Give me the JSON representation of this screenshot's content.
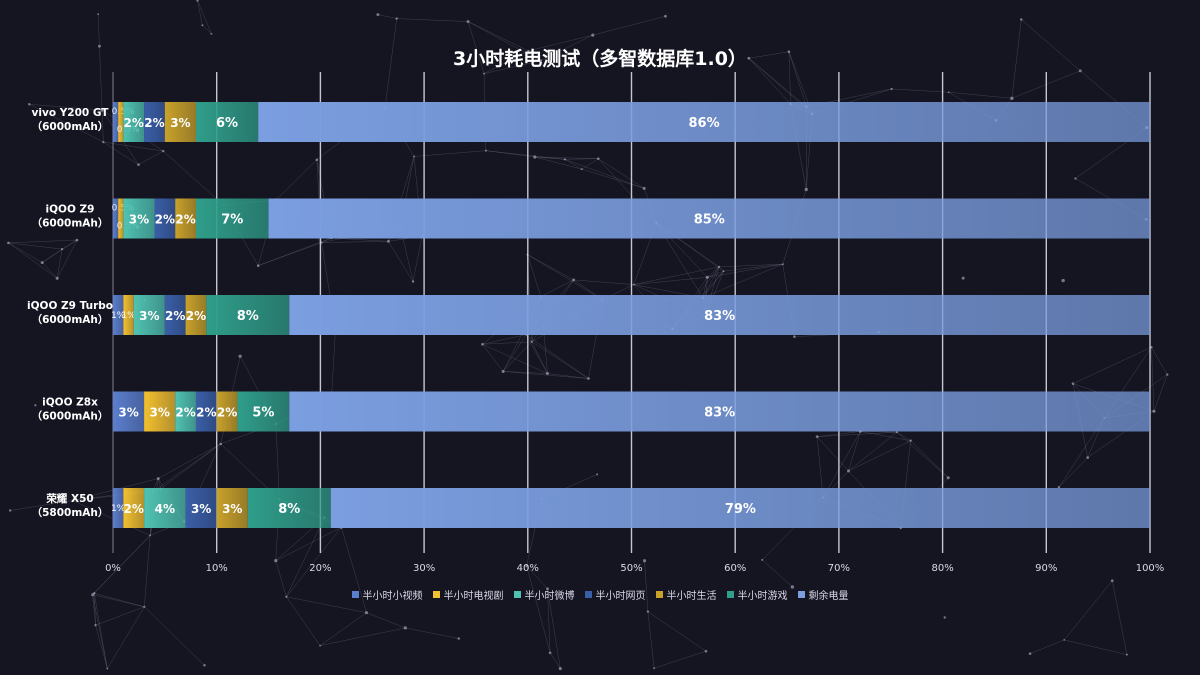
{
  "chart_data": {
    "type": "bar",
    "orientation": "horizontal-stacked-100",
    "title": "3小时耗电测试（多智数据库1.0）",
    "categories": [
      "vivo Y200 GT\n（6000mAh）",
      "iQOO Z9\n（6000mAh）",
      "iQOO Z9 Turbo\n（6000mAh）",
      "iQOO Z8x\n（6000mAh）",
      "荣耀 X50\n（5800mAh）"
    ],
    "series": [
      {
        "name": "半小时小视频",
        "color": "#5b7fcf",
        "values": [
          0.5,
          0.5,
          1,
          3,
          1
        ],
        "labels": [
          "0.5%",
          "0.5%",
          "1%",
          "3%",
          "1%"
        ]
      },
      {
        "name": "半小时电视剧",
        "color": "#f2c030",
        "values": [
          0.5,
          0.5,
          1,
          3,
          2
        ],
        "labels": [
          "0.5%",
          "0.5%",
          "1%",
          "3%",
          "2%"
        ]
      },
      {
        "name": "半小时微博",
        "color": "#4fc3b2",
        "values": [
          2,
          3,
          3,
          2,
          4
        ],
        "labels": [
          "2%",
          "3%",
          "3%",
          "2%",
          "4%"
        ]
      },
      {
        "name": "半小时网页",
        "color": "#3a5fa8",
        "values": [
          2,
          2,
          2,
          2,
          3
        ],
        "labels": [
          "2%",
          "2%",
          "2%",
          "2%",
          "3%"
        ]
      },
      {
        "name": "半小时生活",
        "color": "#c9a22a",
        "values": [
          3,
          2,
          2,
          2,
          3
        ],
        "labels": [
          "3%",
          "2%",
          "2%",
          "2%",
          "3%"
        ]
      },
      {
        "name": "半小时游戏",
        "color": "#2f9e8a",
        "values": [
          6,
          7,
          8,
          5,
          8
        ],
        "labels": [
          "6%",
          "7%",
          "8%",
          "5%",
          "8%"
        ]
      },
      {
        "name": "剩余电量",
        "color": "#7b9ee0",
        "values": [
          86,
          85,
          83,
          83,
          79
        ],
        "labels": [
          "86%",
          "85%",
          "83%",
          "83%",
          "79%"
        ]
      }
    ],
    "xlim": [
      0,
      100
    ],
    "xticks": [
      "0%",
      "10%",
      "20%",
      "30%",
      "40%",
      "50%",
      "60%",
      "70%",
      "80%",
      "90%",
      "100%"
    ],
    "grid": true,
    "legend_position": "bottom"
  }
}
